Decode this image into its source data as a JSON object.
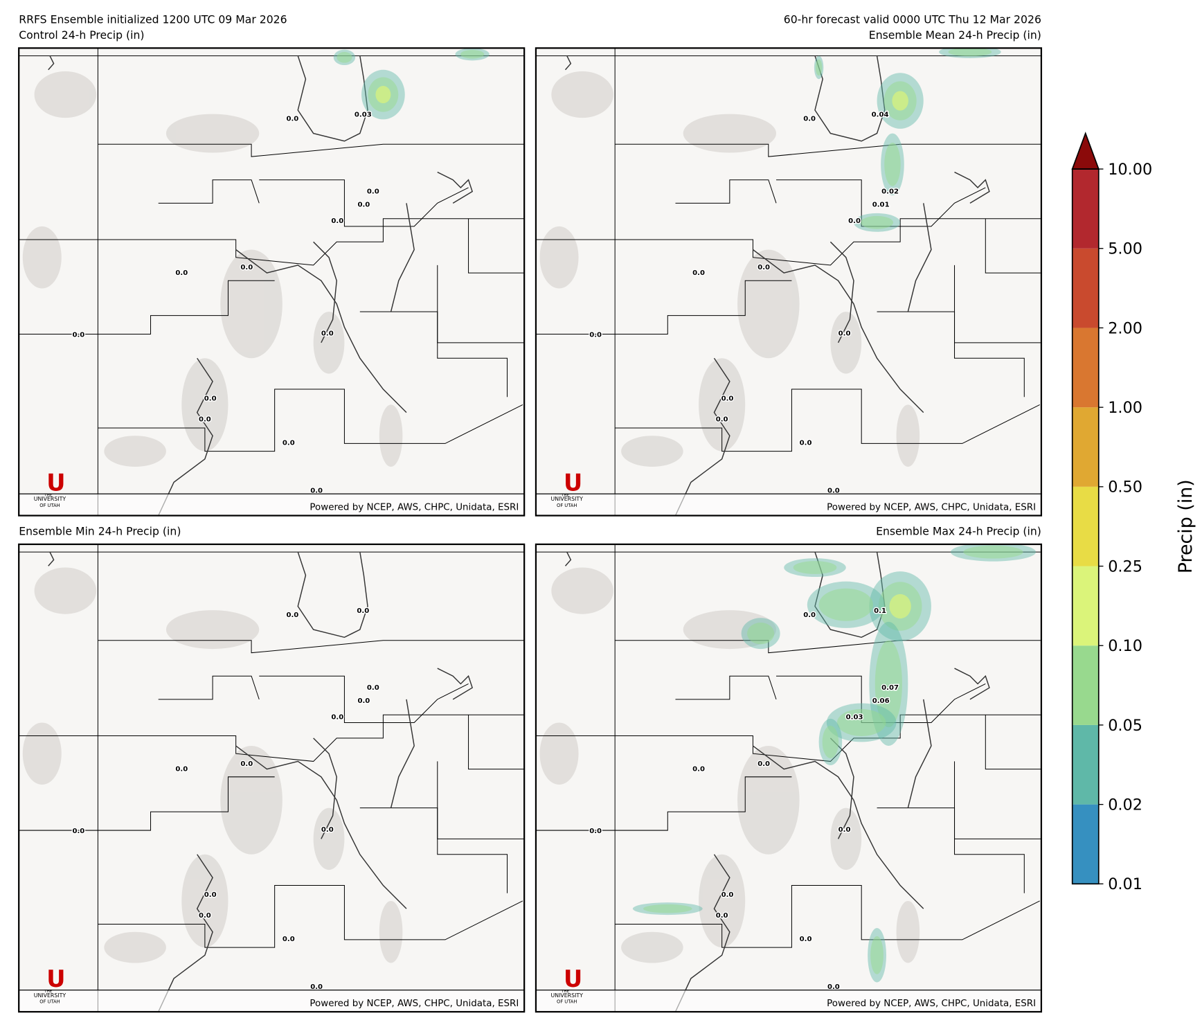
{
  "header": {
    "left_title": "RRFS Ensemble initialized 1200 UTC 09 Mar 2026",
    "right_title": "60-hr forecast valid 0000 UTC Thu 12 Mar 2026"
  },
  "panels": [
    {
      "title": "Control 24-h Precip (in)",
      "labels": [
        "0.0",
        "0.03",
        "0.0",
        "0.0",
        "0.0",
        "0.0",
        "0.0",
        "0.0",
        "0.0",
        "0.0",
        "0.0",
        "0.0",
        "0.0"
      ]
    },
    {
      "title": "Ensemble Mean 24-h Precip (in)",
      "labels": [
        "0.0",
        "0.04",
        "0.02",
        "0.01",
        "0.0",
        "0.0",
        "0.0",
        "0.0",
        "0.0",
        "0.0",
        "0.0",
        "0.0",
        "0.0"
      ]
    },
    {
      "title": "Ensemble Min 24-h Precip (in)",
      "labels": [
        "0.0",
        "0.0",
        "0.0",
        "0.0",
        "0.0",
        "0.0",
        "0.0",
        "0.0",
        "0.0",
        "0.0",
        "0.0",
        "0.0",
        "0.0"
      ]
    },
    {
      "title": "Ensemble Max 24-h Precip (in)",
      "labels": [
        "0.0",
        "0.1",
        "0.07",
        "0.06",
        "0.03",
        "0.0",
        "0.0",
        "0.0",
        "0.0",
        "0.0",
        "0.0",
        "0.0",
        "0.0"
      ]
    }
  ],
  "credit": "Powered by NCEP, AWS, CHPC, Unidata, ESRI",
  "logo": {
    "mark": "U",
    "line1": "THE",
    "line2": "UNIVERSITY",
    "line3": "OF UTAH"
  },
  "colorbar": {
    "label": "Precip (in)",
    "ticks": [
      {
        "value": 0.01,
        "label": "0.01"
      },
      {
        "value": 0.02,
        "label": "0.02"
      },
      {
        "value": 0.05,
        "label": "0.05"
      },
      {
        "value": 0.1,
        "label": "0.10"
      },
      {
        "value": 0.25,
        "label": "0.25"
      },
      {
        "value": 0.5,
        "label": "0.50"
      },
      {
        "value": 1,
        "label": "1.00"
      },
      {
        "value": 2,
        "label": "2.00"
      },
      {
        "value": 5,
        "label": "5.00"
      },
      {
        "value": 10,
        "label": "10.00"
      }
    ],
    "colors": [
      "#3690c0",
      "#5fb8a8",
      "#98d98e",
      "#dbf47a",
      "#e8dc45",
      "#e0a832",
      "#d97730",
      "#c94a2e",
      "#b2282e"
    ],
    "extend_color": "#8b0a0a"
  }
}
